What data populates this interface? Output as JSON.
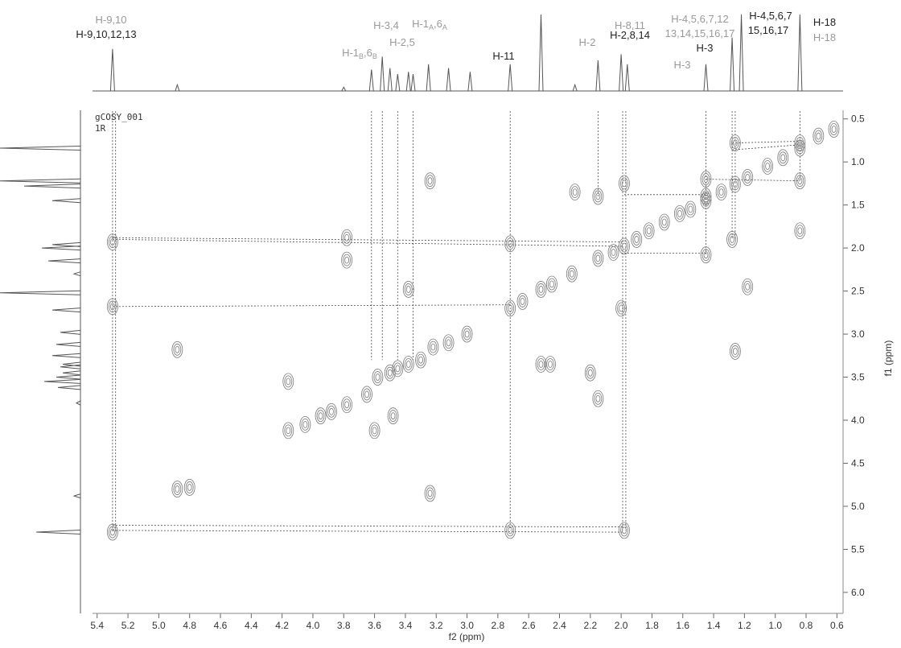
{
  "chart_data": {
    "type": "cosy",
    "x_label": "f2 (ppm)",
    "y_label": "f1 (ppm)",
    "experiment": "gCOSY_001",
    "subtitle": "1R",
    "xlim": [
      5.43,
      0.56
    ],
    "ylim": [
      0.4,
      6.3
    ],
    "xticks": [
      5.4,
      5.2,
      {
        "value": 5,
        "label": "5.0"
      },
      4.8,
      4.6,
      4.4,
      4.2,
      {
        "value": 4,
        "label": "4.0"
      },
      3.8,
      3.6,
      3.4,
      3.2,
      {
        "value": 3,
        "label": "3.0"
      },
      2.8,
      2.6,
      2.4,
      2.2,
      {
        "value": 2,
        "label": "2.0"
      },
      1.8,
      1.6,
      1.4,
      1.2,
      {
        "value": 1,
        "label": "1.0"
      },
      0.8,
      0.6
    ],
    "yticks": [
      0.5,
      {
        "value": 1,
        "label": "1.0"
      },
      1.5,
      {
        "value": 2,
        "label": "2.0"
      },
      2.5,
      {
        "value": 3,
        "label": "3.0"
      },
      3.5,
      {
        "value": 4,
        "label": "4.0"
      },
      4.5,
      {
        "value": 5,
        "label": "5.0"
      },
      5.5,
      {
        "value": 6,
        "label": "6.0"
      }
    ],
    "spectrum_color": "#555555",
    "contour_color": "#777777",
    "guide_color": "#444444",
    "projection": {
      "x": [
        5.3,
        4.88,
        3.8,
        3.62,
        3.55,
        3.5,
        3.45,
        3.38,
        3.35,
        3.25,
        3.12,
        2.98,
        2.72,
        2.52,
        2.3,
        2.15,
        2.0,
        1.96,
        1.45,
        1.28,
        1.22,
        0.84
      ],
      "values": [
        55,
        8,
        5,
        28,
        45,
        30,
        22,
        25,
        22,
        35,
        30,
        25,
        35,
        100,
        8,
        40,
        48,
        35,
        35,
        70,
        100,
        100
      ]
    },
    "cross_peaks": {
      "x": [
        5.3,
        4.16,
        4.05,
        3.95,
        3.88,
        3.78,
        3.65,
        3.58,
        3.5,
        3.45,
        3.38,
        3.3,
        3.22,
        3.12,
        3.0,
        2.72,
        2.64,
        2.52,
        2.45,
        2.32,
        2.15,
        2.05,
        1.98,
        1.9,
        1.82,
        1.72,
        1.62,
        1.55,
        1.45,
        1.35,
        1.26,
        1.18,
        1.05,
        0.95,
        0.84,
        0.72,
        0.62,
        5.3,
        5.3,
        4.88,
        4.88,
        4.8,
        4.16,
        3.78,
        3.78,
        3.6,
        3.48,
        3.38,
        3.24,
        3.24,
        2.72,
        2.72,
        2.52,
        2.46,
        2.2,
        2.15,
        2.15,
        1.98,
        1.98,
        2.0,
        1.45,
        1.45,
        1.45,
        1.28,
        1.26,
        1.26,
        1.18,
        0.84,
        0.84,
        2.3,
        0.84
      ],
      "values": [
        5.3,
        4.12,
        4.05,
        3.95,
        3.9,
        3.82,
        3.7,
        3.5,
        3.45,
        3.4,
        3.35,
        3.3,
        3.15,
        3.1,
        3.0,
        2.7,
        2.62,
        2.48,
        2.42,
        2.3,
        2.12,
        2.05,
        1.98,
        1.9,
        1.8,
        1.7,
        1.6,
        1.55,
        1.45,
        1.35,
        1.26,
        1.18,
        1.05,
        0.95,
        0.84,
        0.7,
        0.62,
        1.93,
        2.68,
        3.18,
        4.8,
        4.78,
        3.55,
        1.88,
        2.14,
        4.12,
        3.95,
        2.48,
        4.85,
        1.22,
        1.95,
        5.28,
        3.35,
        3.35,
        3.45,
        1.4,
        3.75,
        1.25,
        5.28,
        2.7,
        2.08,
        1.2,
        1.4,
        1.9,
        0.78,
        3.2,
        2.45,
        1.22,
        0.78,
        1.35,
        1.8
      ]
    },
    "guides": [
      {
        "x": [
          5.3,
          5.3
        ],
        "y": [
          0.41,
          5.3
        ]
      },
      {
        "x": [
          5.28,
          5.28
        ],
        "y": [
          0.41,
          5.3
        ]
      },
      {
        "x": [
          3.62,
          3.62
        ],
        "y": [
          0.41,
          3.3
        ]
      },
      {
        "x": [
          3.55,
          3.55
        ],
        "y": [
          0.41,
          3.3
        ]
      },
      {
        "x": [
          3.45,
          3.45
        ],
        "y": [
          0.41,
          3.3
        ]
      },
      {
        "x": [
          3.35,
          3.35
        ],
        "y": [
          0.41,
          3.3
        ]
      },
      {
        "x": [
          2.72,
          2.72
        ],
        "y": [
          0.41,
          5.28
        ]
      },
      {
        "x": [
          2.15,
          2.15
        ],
        "y": [
          0.41,
          1.4
        ]
      },
      {
        "x": [
          1.99,
          1.99
        ],
        "y": [
          0.41,
          5.28
        ]
      },
      {
        "x": [
          1.97,
          1.97
        ],
        "y": [
          0.41,
          5.28
        ]
      },
      {
        "x": [
          1.45,
          1.45
        ],
        "y": [
          0.41,
          2.08
        ]
      },
      {
        "x": [
          1.28,
          1.28
        ],
        "y": [
          0.41,
          1.9
        ]
      },
      {
        "x": [
          1.26,
          1.26
        ],
        "y": [
          0.41,
          1.9
        ]
      },
      {
        "x": [
          0.84,
          0.84
        ],
        "y": [
          0.41,
          1.22
        ]
      },
      {
        "x": [
          5.3,
          1.98
        ],
        "y": [
          1.88,
          1.93
        ]
      },
      {
        "x": [
          5.3,
          1.98
        ],
        "y": [
          1.9,
          1.98
        ]
      },
      {
        "x": [
          5.3,
          2.72
        ],
        "y": [
          2.68,
          2.66
        ]
      },
      {
        "x": [
          5.3,
          1.98
        ],
        "y": [
          5.22,
          5.24
        ]
      },
      {
        "x": [
          5.3,
          1.98
        ],
        "y": [
          5.28,
          5.3
        ]
      },
      {
        "x": [
          1.98,
          1.45
        ],
        "y": [
          1.38,
          1.38
        ]
      },
      {
        "x": [
          2.0,
          1.45
        ],
        "y": [
          2.06,
          2.06
        ]
      },
      {
        "x": [
          1.28,
          0.84
        ],
        "y": [
          0.78,
          0.76
        ]
      },
      {
        "x": [
          1.28,
          0.84
        ],
        "y": [
          0.86,
          0.8
        ]
      },
      {
        "x": [
          1.45,
          0.84
        ],
        "y": [
          1.2,
          1.22
        ]
      }
    ],
    "annotations": [
      {
        "segments": [
          "H-9,10"
        ],
        "color": "#999999"
      },
      {
        "segments": [
          "H-9,10,12,13"
        ],
        "color": "#222222"
      },
      {
        "segments": [
          "H-3,4"
        ],
        "color": "#999999"
      },
      {
        "segments": [
          "H-1",
          "A",
          ",6",
          "A"
        ],
        "color": "#999999"
      },
      {
        "segments": [
          "H-2,5"
        ],
        "color": "#999999"
      },
      {
        "segments": [
          "H-1",
          "B",
          ",6",
          "B"
        ],
        "color": "#999999"
      },
      {
        "segments": [
          "H-11"
        ],
        "color": "#222222"
      },
      {
        "segments": [
          "H-2"
        ],
        "color": "#999999"
      },
      {
        "segments": [
          "H-8,11"
        ],
        "color": "#999999"
      },
      {
        "segments": [
          "H-2,8,14"
        ],
        "color": "#222222"
      },
      {
        "segments": [
          "H-4,5,6,7,12"
        ],
        "color": "#999999"
      },
      {
        "segments": [
          "13,14,15,16,17"
        ],
        "color": "#999999"
      },
      {
        "segments": [
          "H-3"
        ],
        "color": "#222222"
      },
      {
        "segments": [
          "H-3"
        ],
        "color": "#999999"
      },
      {
        "segments": [
          "H-4,5,6,7"
        ],
        "color": "#222222"
      },
      {
        "segments": [
          "15,16,17"
        ],
        "color": "#222222"
      },
      {
        "segments": [
          "H-18"
        ],
        "color": "#222222"
      },
      {
        "segments": [
          "H-18"
        ],
        "color": "#999999"
      }
    ]
  }
}
